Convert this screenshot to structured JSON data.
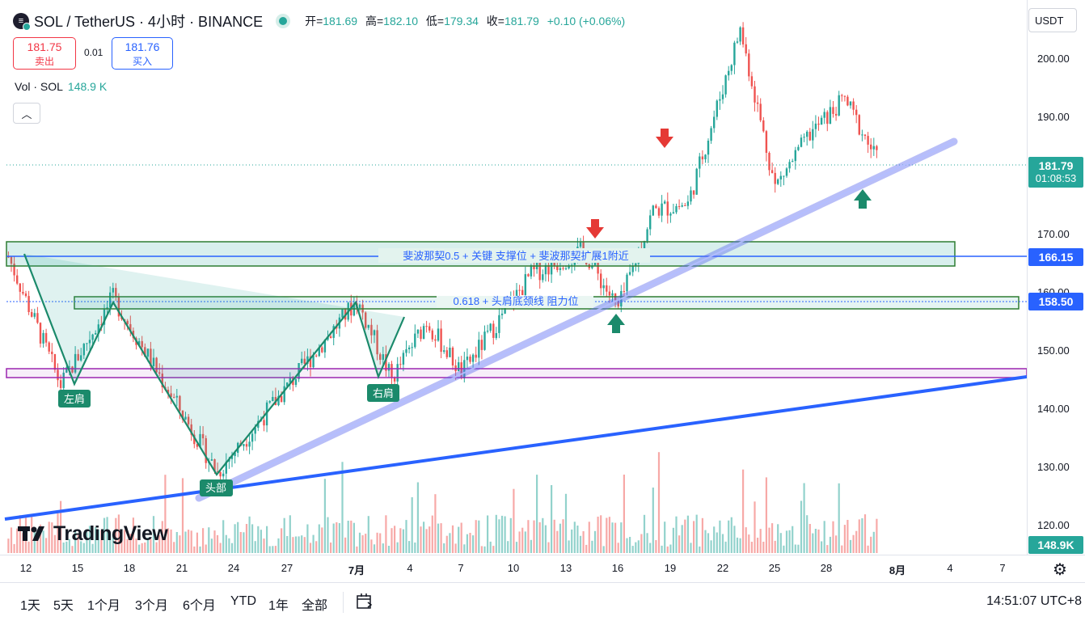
{
  "header": {
    "symbol": "SOL / TetherUS · 4小时 · BINANCE",
    "logo_icon": "solana-logo-icon",
    "ohlc": [
      {
        "label": "开=",
        "value": "181.69"
      },
      {
        "label": "高=",
        "value": "182.10"
      },
      {
        "label": "低=",
        "value": "179.34"
      },
      {
        "label": "收=",
        "value": "181.79"
      }
    ],
    "change": "+0.10 (+0.06%)"
  },
  "trade": {
    "sell_price": "181.75",
    "sell_label": "卖出",
    "spread": "0.01",
    "buy_price": "181.76",
    "buy_label": "买入"
  },
  "volume": {
    "label": "Vol · SOL",
    "value": "148.9 K"
  },
  "collapse_icon": "chevron-up-icon",
  "brand": "TradingView",
  "price_axis": {
    "currency": "USDT",
    "ticks": [
      "200.00",
      "190.00",
      "170.00",
      "160.00",
      "150.00",
      "140.00",
      "130.00",
      "120.00"
    ],
    "last_price": "181.79",
    "countdown": "01:08:53",
    "level_1": "166.15",
    "level_2": "158.50",
    "volume_tag": "148.9K"
  },
  "time_axis": [
    "12",
    "15",
    "18",
    "21",
    "24",
    "27",
    "7月",
    "4",
    "7",
    "10",
    "13",
    "16",
    "19",
    "22",
    "25",
    "28",
    "8月",
    "4",
    "7"
  ],
  "settings_icon": "gear-icon",
  "ranges": [
    "1天",
    "5天",
    "1个月",
    "3个月",
    "6个月",
    "YTD",
    "1年",
    "全部"
  ],
  "compare_icon": "calendar-range-icon",
  "clock": "14:51:07 UTC+8",
  "annotations": {
    "zone_upper": "斐波那契0.5 + 关键 支撑位 + 斐波那契扩展1附近",
    "zone_lower": "0.618 + 头肩底颈线  阻力位",
    "left_shoulder": "左肩",
    "head": "头部",
    "right_shoulder": "右肩"
  },
  "colors": {
    "up": "#26a69a",
    "down": "#ef5350",
    "level_line": "#2962ff",
    "zone": "#2e7d32",
    "purple": "#9c27b0"
  },
  "chart_data": {
    "type": "candlestick",
    "symbol": "SOL/USDT",
    "timeframe": "4h",
    "ylim": [
      116,
      208
    ],
    "key_points": [
      {
        "date": "2024-06-11",
        "price": 166
      },
      {
        "date": "2024-06-14",
        "price": 144
      },
      {
        "date": "2024-06-17",
        "price": 159
      },
      {
        "date": "2024-06-23",
        "price": 129
      },
      {
        "date": "2024-07-01",
        "price": 158.5
      },
      {
        "date": "2024-07-03",
        "price": 145
      },
      {
        "date": "2024-07-05",
        "price": 155
      },
      {
        "date": "2024-07-07",
        "price": 146
      },
      {
        "date": "2024-07-11",
        "price": 163
      },
      {
        "date": "2024-07-14",
        "price": 167
      },
      {
        "date": "2024-07-16",
        "price": 157
      },
      {
        "date": "2024-07-18",
        "price": 174
      },
      {
        "date": "2024-07-20",
        "price": 175
      },
      {
        "date": "2024-07-22",
        "price": 195
      },
      {
        "date": "2024-07-23",
        "price": 205
      },
      {
        "date": "2024-07-25",
        "price": 178
      },
      {
        "date": "2024-07-27",
        "price": 187
      },
      {
        "date": "2024-07-29",
        "price": 193
      },
      {
        "date": "2024-07-31",
        "price": 181.79
      }
    ],
    "horizontal_levels": [
      166.15,
      158.5,
      146.5,
      145.3
    ],
    "trendlines": [
      {
        "from": {
          "date": "2024-06-23",
          "price": 126
        },
        "to": {
          "date": "2024-08-02",
          "price": 186
        },
        "style": "light-blue-thick"
      },
      {
        "from": {
          "date": "2024-06-10",
          "price": 121
        },
        "to": {
          "date": "2024-08-08",
          "price": 146
        },
        "style": "blue"
      }
    ],
    "arrows": [
      {
        "dir": "down",
        "date": "2024-07-14",
        "price": 168
      },
      {
        "dir": "down",
        "date": "2024-07-18",
        "price": 184
      },
      {
        "dir": "up",
        "date": "2024-07-15",
        "price": 155
      },
      {
        "dir": "up",
        "date": "2024-07-31",
        "price": 177
      }
    ]
  }
}
